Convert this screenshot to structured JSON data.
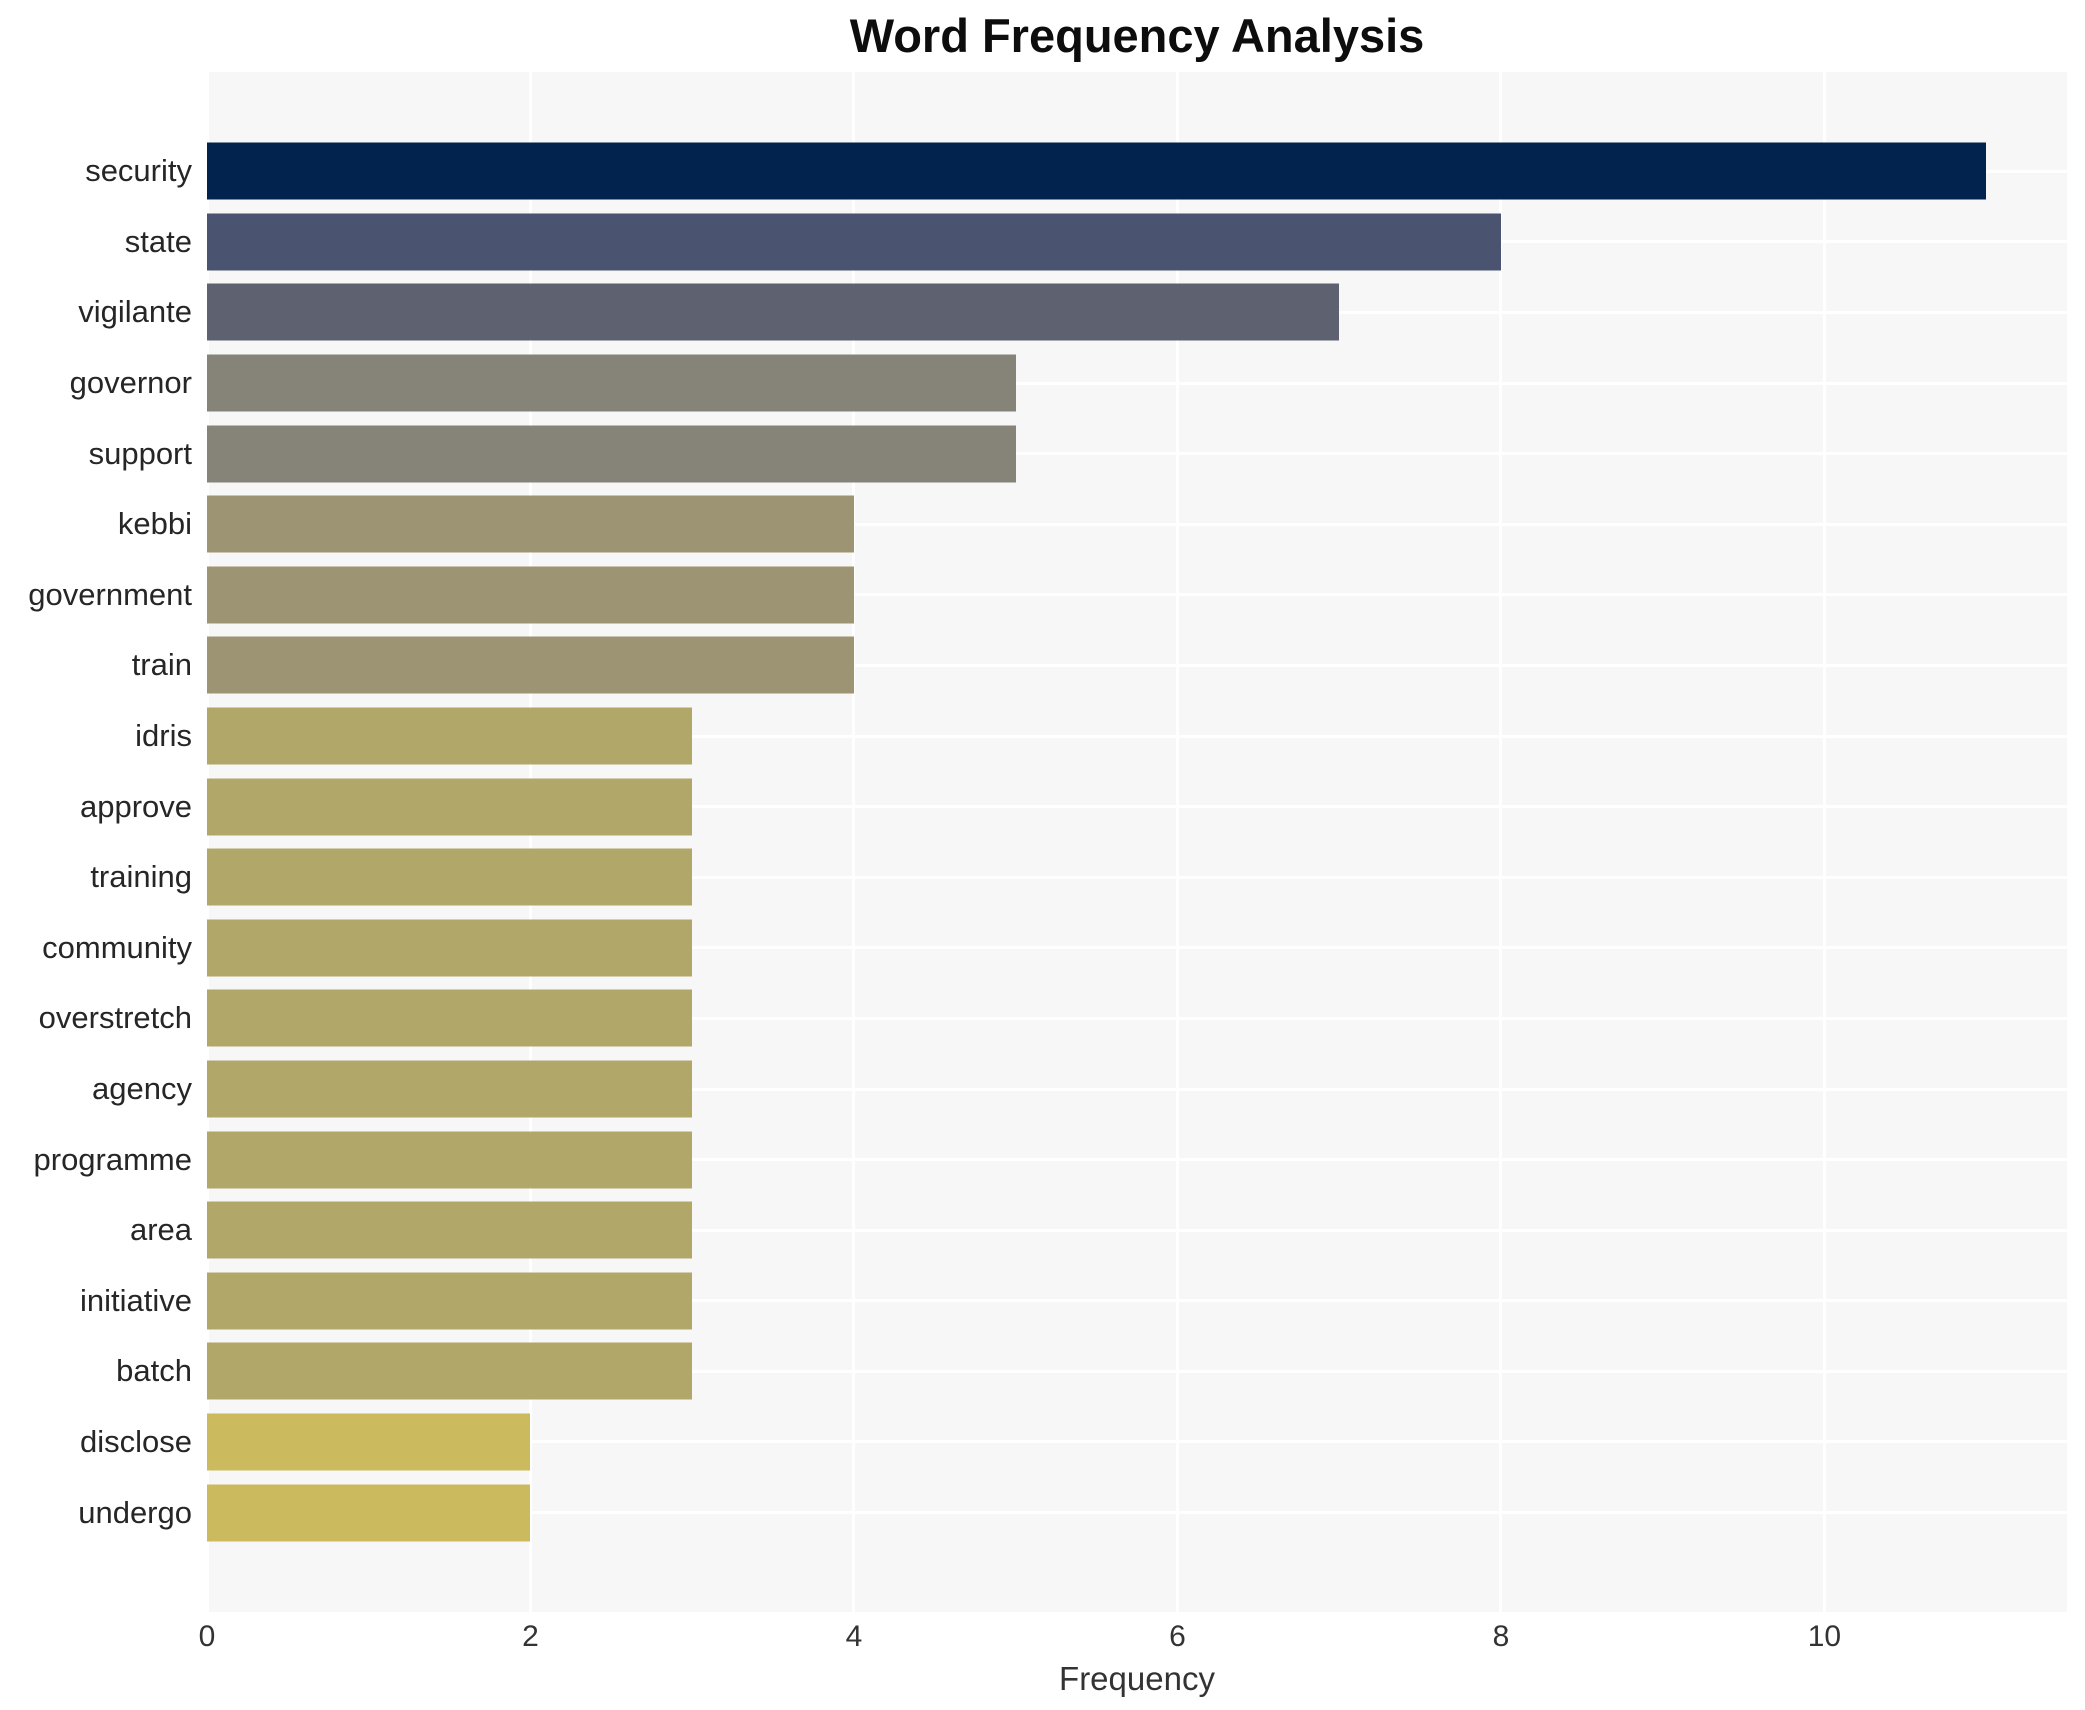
{
  "title": "Word Frequency Analysis",
  "chart_data": {
    "type": "bar",
    "orientation": "horizontal",
    "title": "Word Frequency Analysis",
    "xlabel": "Frequency",
    "ylabel": "",
    "categories": [
      "security",
      "state",
      "vigilante",
      "governor",
      "support",
      "kebbi",
      "government",
      "train",
      "idris",
      "approve",
      "training",
      "community",
      "overstretch",
      "agency",
      "programme",
      "area",
      "initiative",
      "batch",
      "disclose",
      "undergo"
    ],
    "values": [
      11,
      8,
      7,
      5,
      5,
      4,
      4,
      4,
      3,
      3,
      3,
      3,
      3,
      3,
      3,
      3,
      3,
      3,
      2,
      2
    ],
    "bar_colors": [
      "#02234d",
      "#4a5370",
      "#5e6270",
      "#868478",
      "#868478",
      "#9c9472",
      "#9c9472",
      "#9c9472",
      "#b0a768",
      "#b0a768",
      "#b0a768",
      "#b0a768",
      "#b0a768",
      "#b0a768",
      "#b0a768",
      "#b0a768",
      "#b0a768",
      "#b0a768",
      "#ccbb5e",
      "#ccbb5e"
    ],
    "xticks": [
      0,
      2,
      4,
      6,
      8,
      10
    ],
    "xlim": [
      0,
      11.5
    ],
    "grid": true,
    "legend": "none",
    "panel_color": "#f7f7f7",
    "gridline_color": "#ffffff",
    "title_color": "#0d0d0d",
    "tick_label_color": "#333333",
    "category_label_color": "#262626"
  }
}
